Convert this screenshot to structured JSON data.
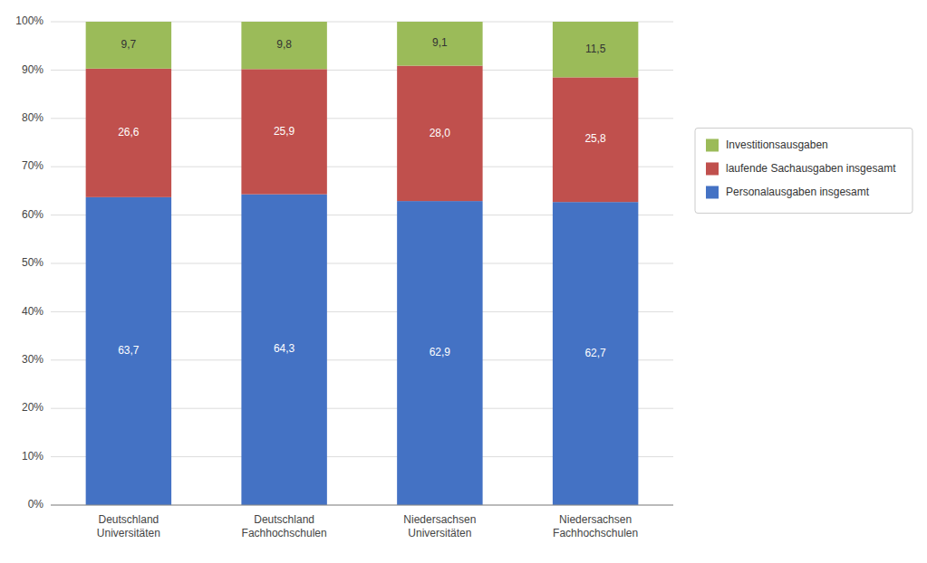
{
  "chart_data": {
    "type": "bar",
    "stacked": true,
    "categories": [
      "Deutschland\nUniversitäten",
      "Deutschland\nFachhochschulen",
      "Niedersachsen\nUniversitäten",
      "Niedersachsen\nFachhochschulen"
    ],
    "series": [
      {
        "name": "Personalausgaben insgesamt",
        "color": "#4472C4",
        "values": [
          63.7,
          64.3,
          62.9,
          62.7
        ],
        "value_labels": [
          "63,7",
          "64,3",
          "62,9",
          "62,7"
        ]
      },
      {
        "name": "laufende Sachausgaben insgesamt",
        "color": "#C0504D",
        "values": [
          26.6,
          25.9,
          28.0,
          25.8
        ],
        "value_labels": [
          "26,6",
          "25,9",
          "28,0",
          "25,8"
        ]
      },
      {
        "name": "Investitionsausgaben",
        "color": "#9BBB59",
        "values": [
          9.7,
          9.8,
          9.1,
          11.5
        ],
        "value_labels": [
          "9,7",
          "9,8",
          "9,1",
          "11,5"
        ]
      }
    ],
    "ylim": [
      0,
      100
    ],
    "yticks": [
      {
        "value": 0,
        "label": "0%"
      },
      {
        "value": 10,
        "label": "10%"
      },
      {
        "value": 20,
        "label": "20%"
      },
      {
        "value": 30,
        "label": "30%"
      },
      {
        "value": 40,
        "label": "40%"
      },
      {
        "value": 50,
        "label": "50%"
      },
      {
        "value": 60,
        "label": "60%"
      },
      {
        "value": 70,
        "label": "70%"
      },
      {
        "value": 80,
        "label": "80%"
      },
      {
        "value": 90,
        "label": "90%"
      },
      {
        "value": 100,
        "label": "100%"
      }
    ],
    "grid": true,
    "legend": "right",
    "data_labels": true
  }
}
